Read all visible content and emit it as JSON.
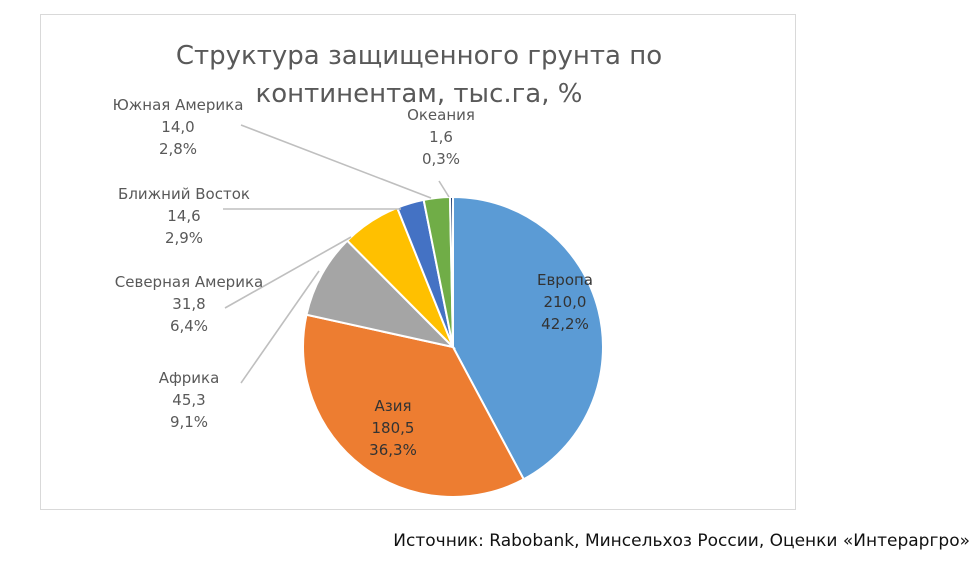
{
  "title_lines": [
    "Структура  защищенного грунта по",
    "континентам, тыс.га, %"
  ],
  "source": "Источник: Rabobank, Минсельхоз России, Оценки «Интераргро»",
  "chart_data": {
    "type": "pie",
    "title": "Структура  защищенного грунта по континентам, тыс.га, %",
    "slices": [
      {
        "name": "Европа",
        "value": 210.0,
        "value_label": "210,0",
        "percent_label": "42,2%",
        "color": "#5b9bd5"
      },
      {
        "name": "Азия",
        "value": 180.5,
        "value_label": "180,5",
        "percent_label": "36,3%",
        "color": "#ed7d31"
      },
      {
        "name": "Африка",
        "value": 45.3,
        "value_label": "45,3",
        "percent_label": "9,1%",
        "color": "#a5a5a5"
      },
      {
        "name": "Северная Америка",
        "value": 31.8,
        "value_label": "31,8",
        "percent_label": "6,4%",
        "color": "#ffc000"
      },
      {
        "name": "Ближний Восток",
        "value": 14.6,
        "value_label": "14,6",
        "percent_label": "2,9%",
        "color": "#4472c4"
      },
      {
        "name": "Южная Америка",
        "value": 14.0,
        "value_label": "14,0",
        "percent_label": "2,8%",
        "color": "#70ad47"
      },
      {
        "name": "Океания",
        "value": 1.6,
        "value_label": "1,6",
        "percent_label": "0,3%",
        "color": "#264478"
      }
    ],
    "start": "12 o'clock",
    "direction": "clockwise",
    "legend": "none"
  }
}
